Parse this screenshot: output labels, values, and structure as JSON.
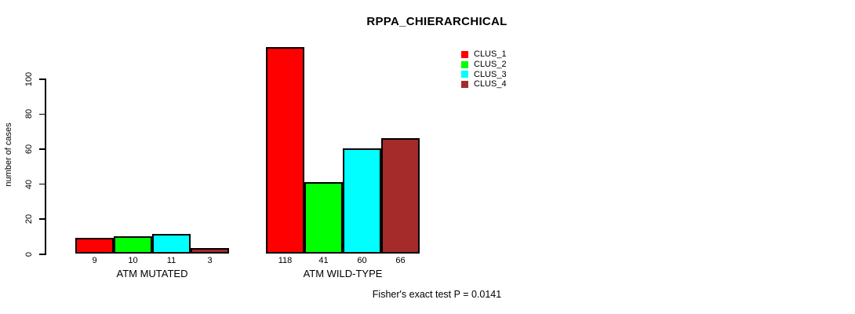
{
  "title": "RPPA_CHIERARCHICAL",
  "footnote": "Fisher's exact test P = 0.0141",
  "chart_data": {
    "type": "bar",
    "title": "RPPA_CHIERARCHICAL",
    "xlabel": "",
    "ylabel": "number of cases",
    "ylim": [
      0,
      118
    ],
    "y_ticks": [
      0,
      20,
      40,
      60,
      80,
      100
    ],
    "grid": false,
    "bar_outline_color": "#000000",
    "legend_position": "top-right",
    "groups": [
      "ATM MUTATED",
      "ATM WILD-TYPE"
    ],
    "series": [
      {
        "name": "CLUS_1",
        "color": "#FF0000",
        "values": [
          9,
          118
        ]
      },
      {
        "name": "CLUS_2",
        "color": "#00FF00",
        "values": [
          10,
          41
        ]
      },
      {
        "name": "CLUS_3",
        "color": "#00FFFF",
        "values": [
          11,
          60
        ]
      },
      {
        "name": "CLUS_4",
        "color": "#A52A2A",
        "values": [
          3,
          66
        ]
      }
    ],
    "bar_value_labels": [
      [
        "9",
        "10",
        "11",
        "3"
      ],
      [
        "118",
        "41",
        "60",
        "66"
      ]
    ],
    "annotation": "Fisher's exact test P = 0.0141"
  }
}
